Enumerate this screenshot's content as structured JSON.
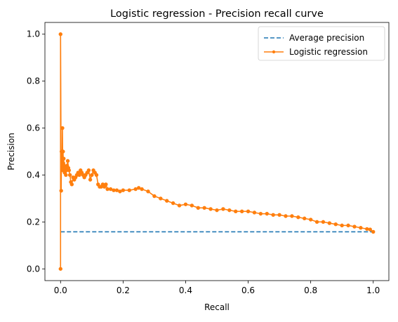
{
  "chart_data": {
    "type": "line",
    "title": "Logistic regression - Precision recall curve",
    "xlabel": "Recall",
    "ylabel": "Precision",
    "xlim": [
      -0.05,
      1.05
    ],
    "ylim": [
      -0.05,
      1.05
    ],
    "xticks": [
      0.0,
      0.2,
      0.4,
      0.6,
      0.8,
      1.0
    ],
    "yticks": [
      0.0,
      0.2,
      0.4,
      0.6,
      0.8,
      1.0
    ],
    "xtick_labels": [
      "0.0",
      "0.2",
      "0.4",
      "0.6",
      "0.8",
      "1.0"
    ],
    "ytick_labels": [
      "0.0",
      "0.2",
      "0.4",
      "0.6",
      "0.8",
      "1.0"
    ],
    "grid": false,
    "legend_position": "upper right",
    "series": [
      {
        "name": "Average precision",
        "style": "dashed",
        "color": "#1f77b4",
        "x": [
          0.0,
          1.0
        ],
        "y": [
          0.158,
          0.158
        ]
      },
      {
        "name": "Logistic regression",
        "style": "solid-with-markers",
        "color": "#ff7f0e",
        "x": [
          0.0,
          0.0,
          0.002,
          0.003,
          0.005,
          0.006,
          0.007,
          0.008,
          0.009,
          0.01,
          0.011,
          0.012,
          0.013,
          0.015,
          0.017,
          0.019,
          0.021,
          0.023,
          0.025,
          0.027,
          0.03,
          0.033,
          0.036,
          0.04,
          0.044,
          0.048,
          0.052,
          0.056,
          0.06,
          0.064,
          0.068,
          0.072,
          0.076,
          0.08,
          0.085,
          0.09,
          0.095,
          0.1,
          0.105,
          0.11,
          0.115,
          0.12,
          0.125,
          0.13,
          0.135,
          0.14,
          0.145,
          0.15,
          0.16,
          0.17,
          0.18,
          0.19,
          0.2,
          0.22,
          0.24,
          0.25,
          0.26,
          0.28,
          0.3,
          0.32,
          0.34,
          0.36,
          0.38,
          0.4,
          0.42,
          0.44,
          0.46,
          0.48,
          0.5,
          0.52,
          0.54,
          0.56,
          0.58,
          0.6,
          0.62,
          0.64,
          0.66,
          0.68,
          0.7,
          0.72,
          0.74,
          0.76,
          0.78,
          0.8,
          0.82,
          0.84,
          0.86,
          0.88,
          0.9,
          0.92,
          0.94,
          0.96,
          0.98,
          0.99,
          1.0
        ],
        "y": [
          0.0,
          1.0,
          0.333,
          0.5,
          0.43,
          0.6,
          0.42,
          0.5,
          0.45,
          0.47,
          0.44,
          0.42,
          0.41,
          0.43,
          0.4,
          0.42,
          0.44,
          0.46,
          0.43,
          0.42,
          0.4,
          0.37,
          0.36,
          0.39,
          0.38,
          0.39,
          0.4,
          0.41,
          0.4,
          0.42,
          0.41,
          0.4,
          0.39,
          0.4,
          0.41,
          0.42,
          0.38,
          0.4,
          0.42,
          0.41,
          0.4,
          0.36,
          0.35,
          0.35,
          0.36,
          0.35,
          0.36,
          0.34,
          0.34,
          0.335,
          0.335,
          0.33,
          0.335,
          0.335,
          0.34,
          0.345,
          0.34,
          0.33,
          0.31,
          0.3,
          0.29,
          0.28,
          0.27,
          0.275,
          0.27,
          0.26,
          0.26,
          0.255,
          0.25,
          0.255,
          0.25,
          0.245,
          0.245,
          0.245,
          0.24,
          0.235,
          0.235,
          0.23,
          0.23,
          0.225,
          0.225,
          0.22,
          0.215,
          0.21,
          0.2,
          0.2,
          0.195,
          0.19,
          0.185,
          0.185,
          0.18,
          0.175,
          0.17,
          0.168,
          0.158
        ]
      }
    ]
  }
}
